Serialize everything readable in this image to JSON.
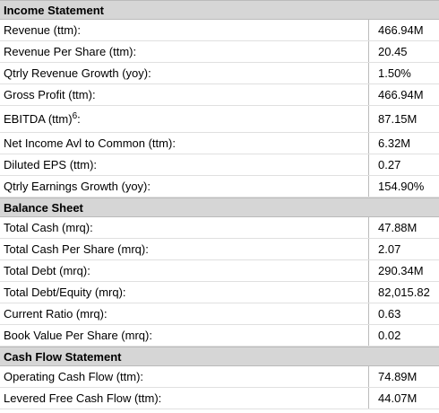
{
  "sections": [
    {
      "title": "Income Statement",
      "rows": [
        {
          "label": "Revenue (ttm):",
          "value": "466.94M"
        },
        {
          "label": "Revenue Per Share (ttm):",
          "value": "20.45"
        },
        {
          "label": "Qtrly Revenue Growth (yoy):",
          "value": "1.50%"
        },
        {
          "label": "Gross Profit (ttm):",
          "value": "466.94M"
        },
        {
          "label": "EBITDA (ttm)",
          "footnote": "6",
          "suffix": ":",
          "value": "87.15M"
        },
        {
          "label": "Net Income Avl to Common (ttm):",
          "value": "6.32M"
        },
        {
          "label": "Diluted EPS (ttm):",
          "value": "0.27"
        },
        {
          "label": "Qtrly Earnings Growth (yoy):",
          "value": "154.90%"
        }
      ]
    },
    {
      "title": "Balance Sheet",
      "rows": [
        {
          "label": "Total Cash (mrq):",
          "value": "47.88M"
        },
        {
          "label": "Total Cash Per Share (mrq):",
          "value": "2.07"
        },
        {
          "label": "Total Debt (mrq):",
          "value": "290.34M"
        },
        {
          "label": "Total Debt/Equity (mrq):",
          "value": "82,015.82"
        },
        {
          "label": "Current Ratio (mrq):",
          "value": "0.63"
        },
        {
          "label": "Book Value Per Share (mrq):",
          "value": "0.02"
        }
      ]
    },
    {
      "title": "Cash Flow Statement",
      "rows": [
        {
          "label": "Operating Cash Flow (ttm):",
          "value": "74.89M"
        },
        {
          "label": "Levered Free Cash Flow (ttm):",
          "value": "44.07M"
        }
      ]
    }
  ]
}
